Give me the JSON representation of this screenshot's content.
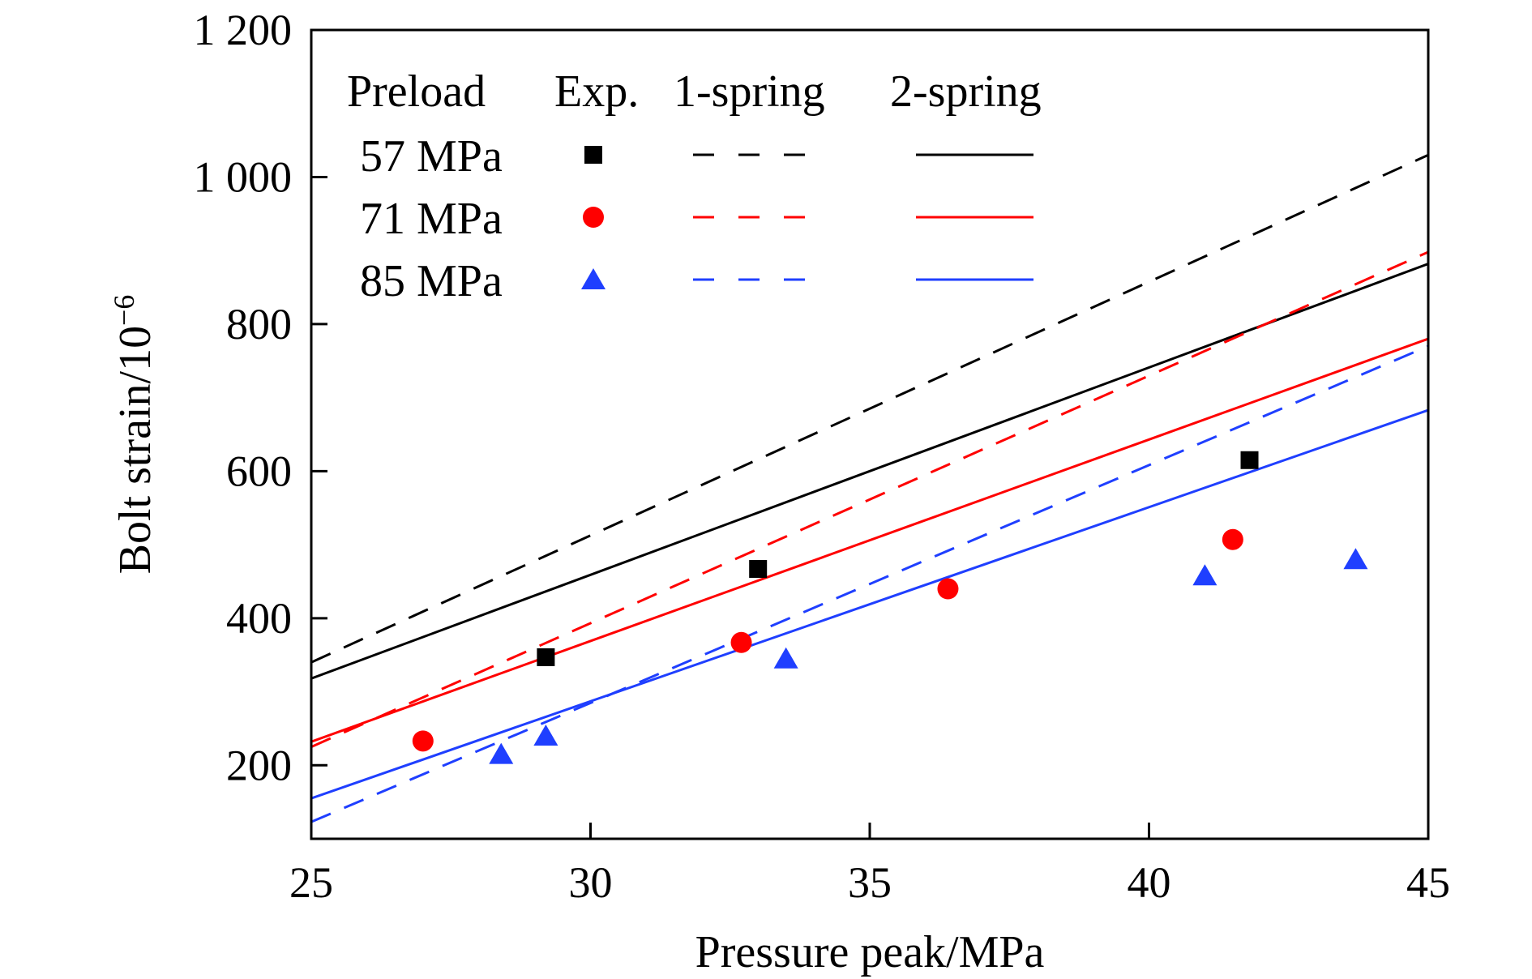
{
  "chart_data": {
    "type": "scatter",
    "title": "",
    "xlabel": "Pressure peak/MPa",
    "ylabel_main": "Bolt strain/10",
    "ylabel_exponent": "−6",
    "xlim": [
      25,
      45
    ],
    "ylim": [
      100,
      1200
    ],
    "x_ticks": [
      25,
      30,
      35,
      40,
      45
    ],
    "x_tick_labels": [
      "25",
      "30",
      "35",
      "40",
      "45"
    ],
    "y_ticks": [
      200,
      400,
      600,
      800,
      1000,
      1200
    ],
    "y_tick_labels": [
      "200",
      "400",
      "600",
      "800",
      "1 000",
      "1 200"
    ],
    "grid": false,
    "legend_position": "top-left",
    "legend": {
      "headers": [
        "Preload",
        "Exp.",
        "1-spring",
        "2-spring"
      ]
    },
    "series": [
      {
        "preload": "57 MPa",
        "color": "#000000",
        "marker": "square",
        "experimental": [
          {
            "x": 29.2,
            "y": 347
          },
          {
            "x": 33.0,
            "y": 467
          },
          {
            "x": 41.8,
            "y": 615
          }
        ],
        "one_spring": [
          [
            25,
            340
          ],
          [
            45,
            1030
          ]
        ],
        "two_spring": [
          [
            25,
            318
          ],
          [
            45,
            882
          ]
        ]
      },
      {
        "preload": "71 MPa",
        "color": "#ff0000",
        "marker": "circle",
        "experimental": [
          {
            "x": 27.0,
            "y": 233
          },
          {
            "x": 32.7,
            "y": 367
          },
          {
            "x": 36.4,
            "y": 440
          },
          {
            "x": 41.5,
            "y": 507
          }
        ],
        "one_spring": [
          [
            25,
            225
          ],
          [
            45,
            898
          ]
        ],
        "two_spring": [
          [
            25,
            232
          ],
          [
            45,
            780
          ]
        ]
      },
      {
        "preload": "85 MPa",
        "color": "#1f3fff",
        "marker": "triangle",
        "experimental": [
          {
            "x": 28.4,
            "y": 215
          },
          {
            "x": 29.2,
            "y": 240
          },
          {
            "x": 33.5,
            "y": 345
          },
          {
            "x": 41.0,
            "y": 458
          },
          {
            "x": 43.7,
            "y": 480
          }
        ],
        "one_spring": [
          [
            25,
            123
          ],
          [
            45,
            770
          ]
        ],
        "two_spring": [
          [
            25,
            155
          ],
          [
            45,
            683
          ]
        ]
      }
    ]
  }
}
